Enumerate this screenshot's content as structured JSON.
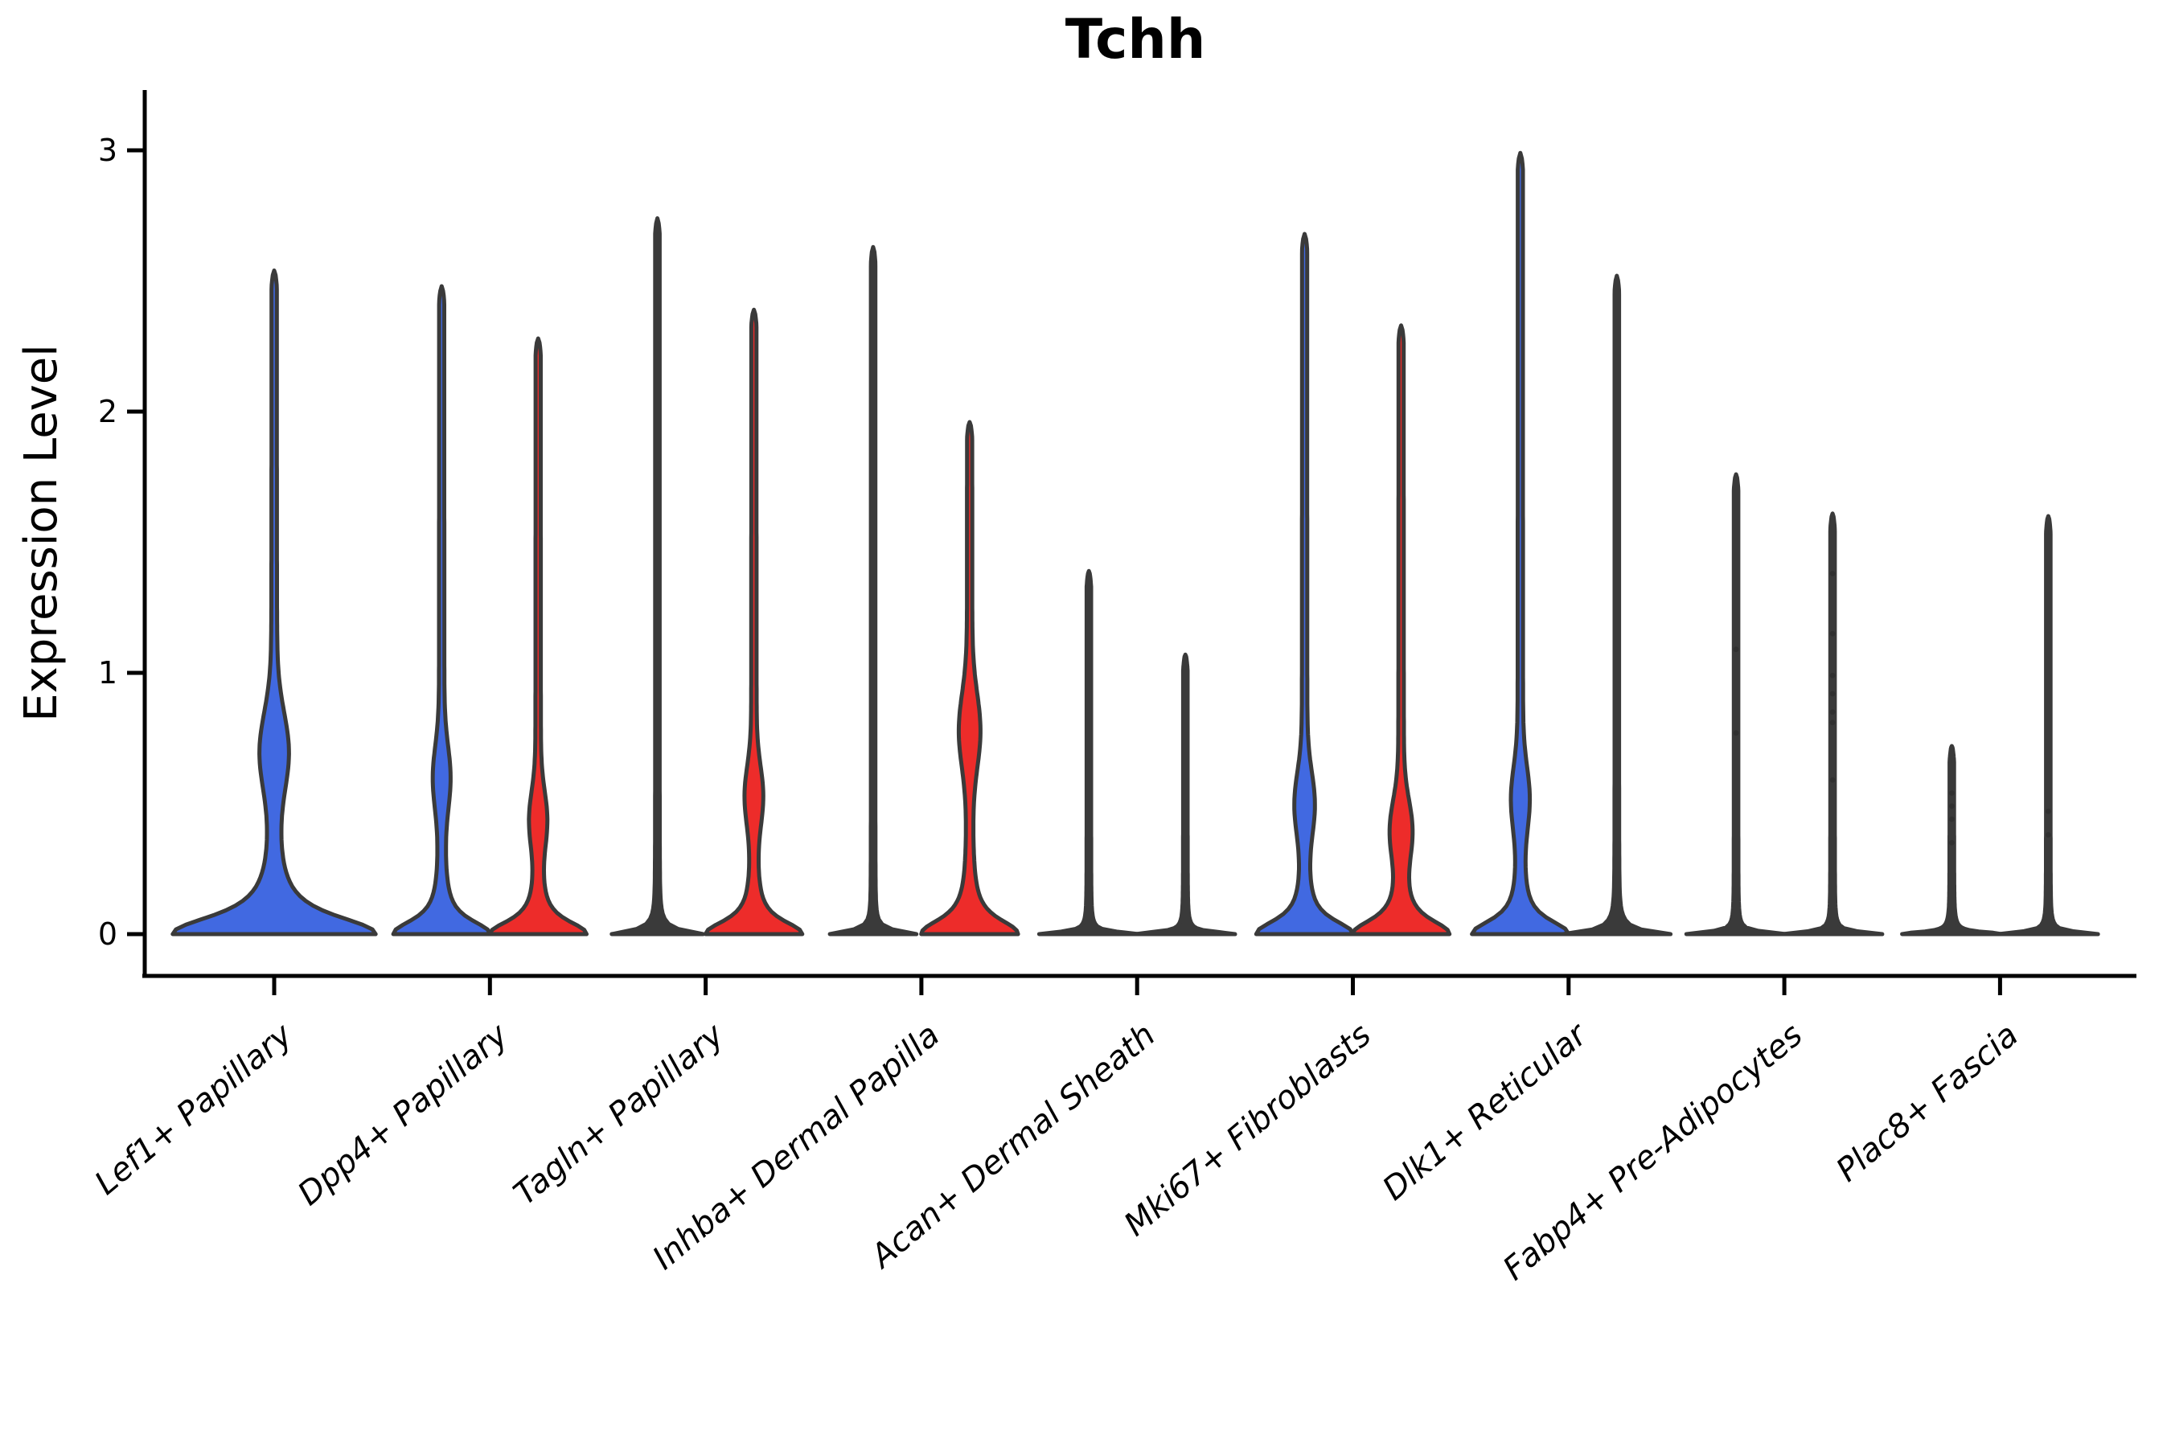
{
  "figure": {
    "title": "Tchh",
    "ylabel": "Expression Level"
  },
  "chart_data": {
    "type": "violin",
    "title": "Tchh",
    "xlabel": "",
    "ylabel": "Expression Level",
    "ylim": [
      0,
      3
    ],
    "yticks": [
      0,
      1,
      2,
      3
    ],
    "grid": false,
    "legend": null,
    "colors": {
      "blue_group": "#4169e1",
      "red_group": "#ed2c2a",
      "outline": "#3a3a3a",
      "collapsed_line": "#3a3a3a",
      "axis": "#000000"
    },
    "categories": [
      "Lef1+ Papillary",
      "Dpp4+ Papillary",
      "Tagln+ Papillary",
      "Inhba+ Dermal Papilla",
      "Acan+ Dermal Sheath",
      "Mki67+ Fibroblasts",
      "Dlk1+ Reticular",
      "Fabp4+ Pre-Adipocytes",
      "Plac8+ Fascia"
    ],
    "series": [
      {
        "cat": 0,
        "group": "blue",
        "style": "violin",
        "offset": 0,
        "max": 2.54,
        "shape": {
          "a_hw": 123,
          "a_d": 0.085,
          "b_hw": 0,
          "b_d": 0.05,
          "bulge_v": 0.7,
          "bulge_hw": 14,
          "bulge_sig": 0.21,
          "spike_hw": 3.2
        },
        "dots": []
      },
      {
        "cat": 1,
        "group": "blue",
        "style": "violin",
        "offset": -60,
        "max": 2.48,
        "shape": {
          "a_hw": 57,
          "a_d": 0.065,
          "b_hw": 0,
          "b_d": 0.05,
          "bulge_v": 0.6,
          "bulge_hw": 7.5,
          "bulge_sig": 0.17,
          "spike_hw": 3.2
        },
        "dots": []
      },
      {
        "cat": 1,
        "group": "red",
        "style": "violin",
        "offset": 60,
        "max": 2.28,
        "shape": {
          "a_hw": 57,
          "a_d": 0.062,
          "b_hw": 0,
          "b_d": 0.05,
          "bulge_v": 0.44,
          "bulge_hw": 7.5,
          "bulge_sig": 0.15,
          "spike_hw": 3.2
        },
        "dots": []
      },
      {
        "cat": 2,
        "group": "blue",
        "style": "line",
        "offset": -60,
        "max": 2.74,
        "shape": {
          "a_hw": 42,
          "a_d": 0.013,
          "b_hw": 12,
          "b_d": 0.05,
          "bulge_v": 0,
          "bulge_hw": 0,
          "bulge_sig": 0.1,
          "spike_hw": 2.8
        },
        "dots": []
      },
      {
        "cat": 2,
        "group": "red",
        "style": "violin",
        "offset": 60,
        "max": 2.39,
        "shape": {
          "a_hw": 57,
          "a_d": 0.062,
          "b_hw": 0,
          "b_d": 0.05,
          "bulge_v": 0.53,
          "bulge_hw": 8,
          "bulge_sig": 0.16,
          "spike_hw": 3.2
        },
        "dots": []
      },
      {
        "cat": 3,
        "group": "blue",
        "style": "line",
        "offset": -60,
        "max": 2.63,
        "shape": {
          "a_hw": 42,
          "a_d": 0.013,
          "b_hw": 9,
          "b_d": 0.04,
          "bulge_v": 0,
          "bulge_hw": 0,
          "bulge_sig": 0.1,
          "spike_hw": 2.8
        },
        "dots": []
      },
      {
        "cat": 3,
        "group": "red",
        "style": "violin",
        "offset": 60,
        "max": 1.96,
        "shape": {
          "a_hw": 57,
          "a_d": 0.07,
          "b_hw": 0,
          "b_d": 0.05,
          "bulge_v": 0.78,
          "bulge_hw": 10,
          "bulge_sig": 0.2,
          "spike_hw": 3.2
        },
        "dots": []
      },
      {
        "cat": 4,
        "group": "blue",
        "style": "line",
        "offset": -60,
        "max": 1.39,
        "shape": {
          "a_hw": 55,
          "a_d": 0.01,
          "b_hw": 4,
          "b_d": 0.05,
          "bulge_v": 0,
          "bulge_hw": 0,
          "bulge_sig": 0.1,
          "spike_hw": 2.8
        },
        "dots": []
      },
      {
        "cat": 4,
        "group": "red",
        "style": "line",
        "offset": 60,
        "max": 1.07,
        "shape": {
          "a_hw": 55,
          "a_d": 0.01,
          "b_hw": 4,
          "b_d": 0.05,
          "bulge_v": 0,
          "bulge_hw": 0,
          "bulge_sig": 0.1,
          "spike_hw": 2.8
        },
        "dots": []
      },
      {
        "cat": 5,
        "group": "blue",
        "style": "violin",
        "offset": -60,
        "max": 2.68,
        "shape": {
          "a_hw": 57,
          "a_d": 0.065,
          "b_hw": 0,
          "b_d": 0.05,
          "bulge_v": 0.5,
          "bulge_hw": 9,
          "bulge_sig": 0.17,
          "spike_hw": 3.2
        },
        "dots": []
      },
      {
        "cat": 5,
        "group": "red",
        "style": "violin",
        "offset": 60,
        "max": 2.33,
        "shape": {
          "a_hw": 57,
          "a_d": 0.068,
          "b_hw": 0,
          "b_d": 0.05,
          "bulge_v": 0.4,
          "bulge_hw": 10,
          "bulge_sig": 0.16,
          "spike_hw": 3.2
        },
        "dots": []
      },
      {
        "cat": 6,
        "group": "blue",
        "style": "violin",
        "offset": -60,
        "max": 2.99,
        "shape": {
          "a_hw": 57,
          "a_d": 0.065,
          "b_hw": 0,
          "b_d": 0.05,
          "bulge_v": 0.52,
          "bulge_hw": 8,
          "bulge_sig": 0.17,
          "spike_hw": 3.2
        },
        "dots": []
      },
      {
        "cat": 6,
        "group": "red",
        "style": "line",
        "offset": 60,
        "max": 2.52,
        "shape": {
          "a_hw": 50,
          "a_d": 0.012,
          "b_hw": 14,
          "b_d": 0.05,
          "bulge_v": 0,
          "bulge_hw": 0,
          "bulge_sig": 0.1,
          "spike_hw": 2.8
        },
        "dots": []
      },
      {
        "cat": 7,
        "group": "blue",
        "style": "line",
        "offset": -60,
        "max": 1.76,
        "shape": {
          "a_hw": 55,
          "a_d": 0.01,
          "b_hw": 4,
          "b_d": 0.05,
          "bulge_v": 0,
          "bulge_hw": 0,
          "bulge_sig": 0.1,
          "spike_hw": 2.8
        },
        "dots": [
          1.09,
          0.77
        ]
      },
      {
        "cat": 7,
        "group": "red",
        "style": "line",
        "offset": 60,
        "max": 1.61,
        "shape": {
          "a_hw": 55,
          "a_d": 0.01,
          "b_hw": 4,
          "b_d": 0.05,
          "bulge_v": 0,
          "bulge_hw": 0,
          "bulge_sig": 0.1,
          "spike_hw": 2.8
        },
        "dots": [
          1.38,
          1.15,
          0.99,
          0.92,
          0.85,
          0.81,
          0.59
        ]
      },
      {
        "cat": 8,
        "group": "blue",
        "style": "line",
        "offset": -60,
        "max": 0.72,
        "shape": {
          "a_hw": 55,
          "a_d": 0.01,
          "b_hw": 4,
          "b_d": 0.05,
          "bulge_v": 0,
          "bulge_hw": 0,
          "bulge_sig": 0.1,
          "spike_hw": 2.8
        },
        "dots": [
          0.54,
          0.49,
          0.44,
          0.35
        ]
      },
      {
        "cat": 8,
        "group": "red",
        "style": "line",
        "offset": 60,
        "max": 1.6,
        "shape": {
          "a_hw": 55,
          "a_d": 0.01,
          "b_hw": 4,
          "b_d": 0.05,
          "bulge_v": 0,
          "bulge_hw": 0,
          "bulge_sig": 0.1,
          "spike_hw": 2.8
        },
        "dots": [
          0.47,
          0.38
        ]
      }
    ]
  }
}
